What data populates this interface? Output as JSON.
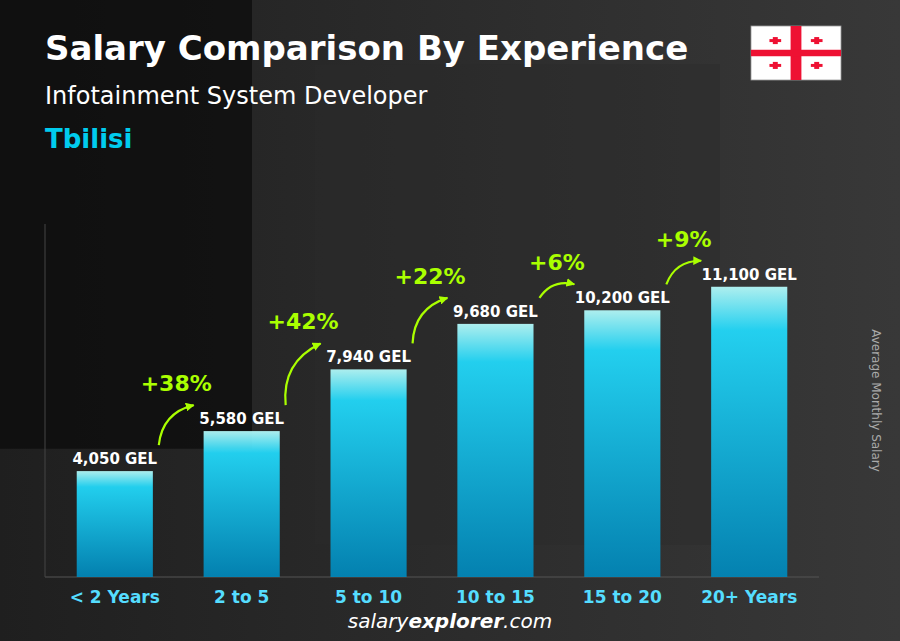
{
  "chart_data": {
    "type": "bar",
    "title": "Salary Comparison By Experience",
    "subtitle": "Infotainment System Developer",
    "city": "Tbilisi",
    "ylabel": "Average Monthly Salary",
    "footer": [
      "salary",
      "explorer",
      ".com"
    ],
    "categories": [
      "< 2 Years",
      "2 to 5",
      "5 to 10",
      "10 to 15",
      "15 to 20",
      "20+ Years"
    ],
    "values": [
      4050,
      5580,
      7940,
      9680,
      10200,
      11100
    ],
    "value_labels": [
      "4,050 GEL",
      "5,580 GEL",
      "7,940 GEL",
      "9,680 GEL",
      "10,200 GEL",
      "11,100 GEL"
    ],
    "data_labels": true,
    "annotations": [
      "+38%",
      "+42%",
      "+22%",
      "+6%",
      "+9%"
    ],
    "color": "#22DDFF",
    "ylim": [
      0,
      13500
    ],
    "tick_labels": "x",
    "grid": false
  }
}
